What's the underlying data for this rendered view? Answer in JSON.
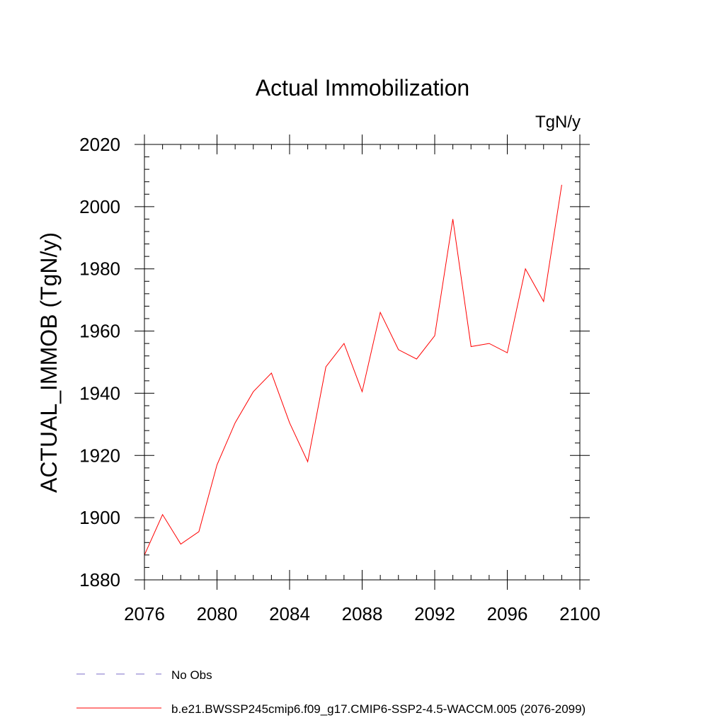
{
  "chart_data": {
    "type": "line",
    "title": "Actual Immobilization",
    "units_label": "TgN/y",
    "xlabel": "",
    "ylabel": "ACTUAL_IMMOB  (TgN/y)",
    "xlim": [
      2076,
      2100
    ],
    "ylim": [
      1880,
      2020
    ],
    "x_ticks": [
      2076,
      2080,
      2084,
      2088,
      2092,
      2096,
      2100
    ],
    "y_ticks": [
      1880,
      1900,
      1920,
      1940,
      1960,
      1980,
      2000,
      2020
    ],
    "x_minor_step": 1,
    "y_minor_step": 4,
    "grid": false,
    "series": [
      {
        "name": "No Obs",
        "color": "#7b6cc9",
        "dash": "dashed",
        "x": [],
        "values": []
      },
      {
        "name": "b.e21.BWSSP245cmip6.f09_g17.CMIP6-SSP2-4.5-WACCM.005 (2076-2099)",
        "color": "#ff0000",
        "dash": "solid",
        "x": [
          2076,
          2077,
          2078,
          2079,
          2080,
          2081,
          2082,
          2083,
          2084,
          2085,
          2086,
          2087,
          2088,
          2089,
          2090,
          2091,
          2092,
          2093,
          2094,
          2095,
          2096,
          2097,
          2098,
          2099
        ],
        "values": [
          1888,
          1901,
          1891.5,
          1895.5,
          1917,
          1930.5,
          1940.5,
          1946.5,
          1930.5,
          1918,
          1948.5,
          1956,
          1940.5,
          1966,
          1954,
          1951,
          1958.5,
          1996,
          1955,
          1956,
          1953,
          1980,
          1969.5,
          2007
        ]
      }
    ],
    "legend_position": "bottom-left"
  }
}
